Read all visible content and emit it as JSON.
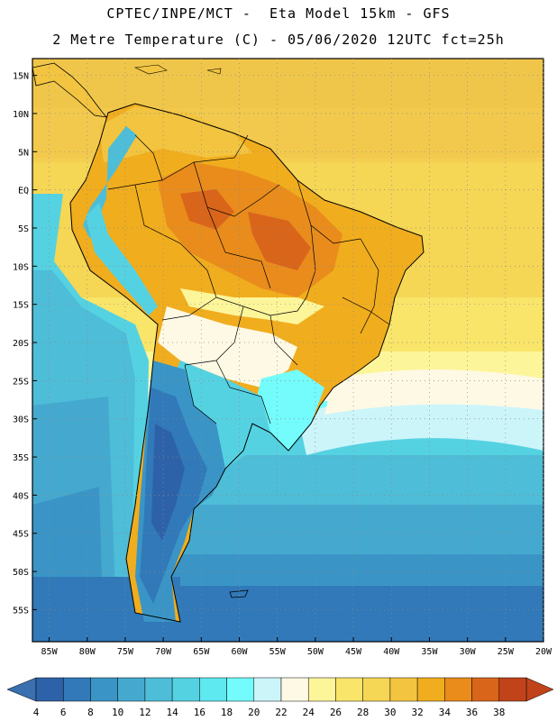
{
  "header": {
    "line1": "CPTEC/INPE/MCT -  Eta Model 15km - GFS",
    "line2": "2 Metre Temperature (C) - 05/06/2020 12UTC fct=25h"
  },
  "map": {
    "region": "South America",
    "lat_labels": [
      "15N",
      "10N",
      "5N",
      "EQ",
      "5S",
      "10S",
      "15S",
      "20S",
      "25S",
      "30S",
      "35S",
      "40S",
      "45S",
      "50S",
      "55S"
    ],
    "lat_values": [
      15,
      10,
      5,
      0,
      -5,
      -10,
      -15,
      -20,
      -25,
      -30,
      -35,
      -40,
      -45,
      -50,
      -55
    ],
    "lon_labels": [
      "85W",
      "80W",
      "75W",
      "70W",
      "65W",
      "60W",
      "55W",
      "50W",
      "45W",
      "40W",
      "35W",
      "30W",
      "25W",
      "20W"
    ],
    "lon_values": [
      -85,
      -80,
      -75,
      -70,
      -65,
      -60,
      -55,
      -50,
      -45,
      -40,
      -35,
      -30,
      -25,
      -20
    ]
  },
  "colorbar": {
    "labels": [
      "4",
      "6",
      "8",
      "10",
      "12",
      "14",
      "16",
      "18",
      "20",
      "22",
      "24",
      "26",
      "28",
      "30",
      "32",
      "34",
      "36",
      "38"
    ],
    "low_color": "#3a6fb0",
    "high_color": "#c0431a",
    "colors": [
      "#2e62a8",
      "#3179b9",
      "#3a95c6",
      "#45a9cf",
      "#4ebdd8",
      "#55d2e2",
      "#5ee8ef",
      "#74fbfb",
      "#ccf5fa",
      "#fef9e4",
      "#fdf59a",
      "#f8e56a",
      "#f5d655",
      "#f2c440",
      "#f0ad1e",
      "#e98c1c",
      "#d9651a",
      "#c0431a"
    ]
  }
}
